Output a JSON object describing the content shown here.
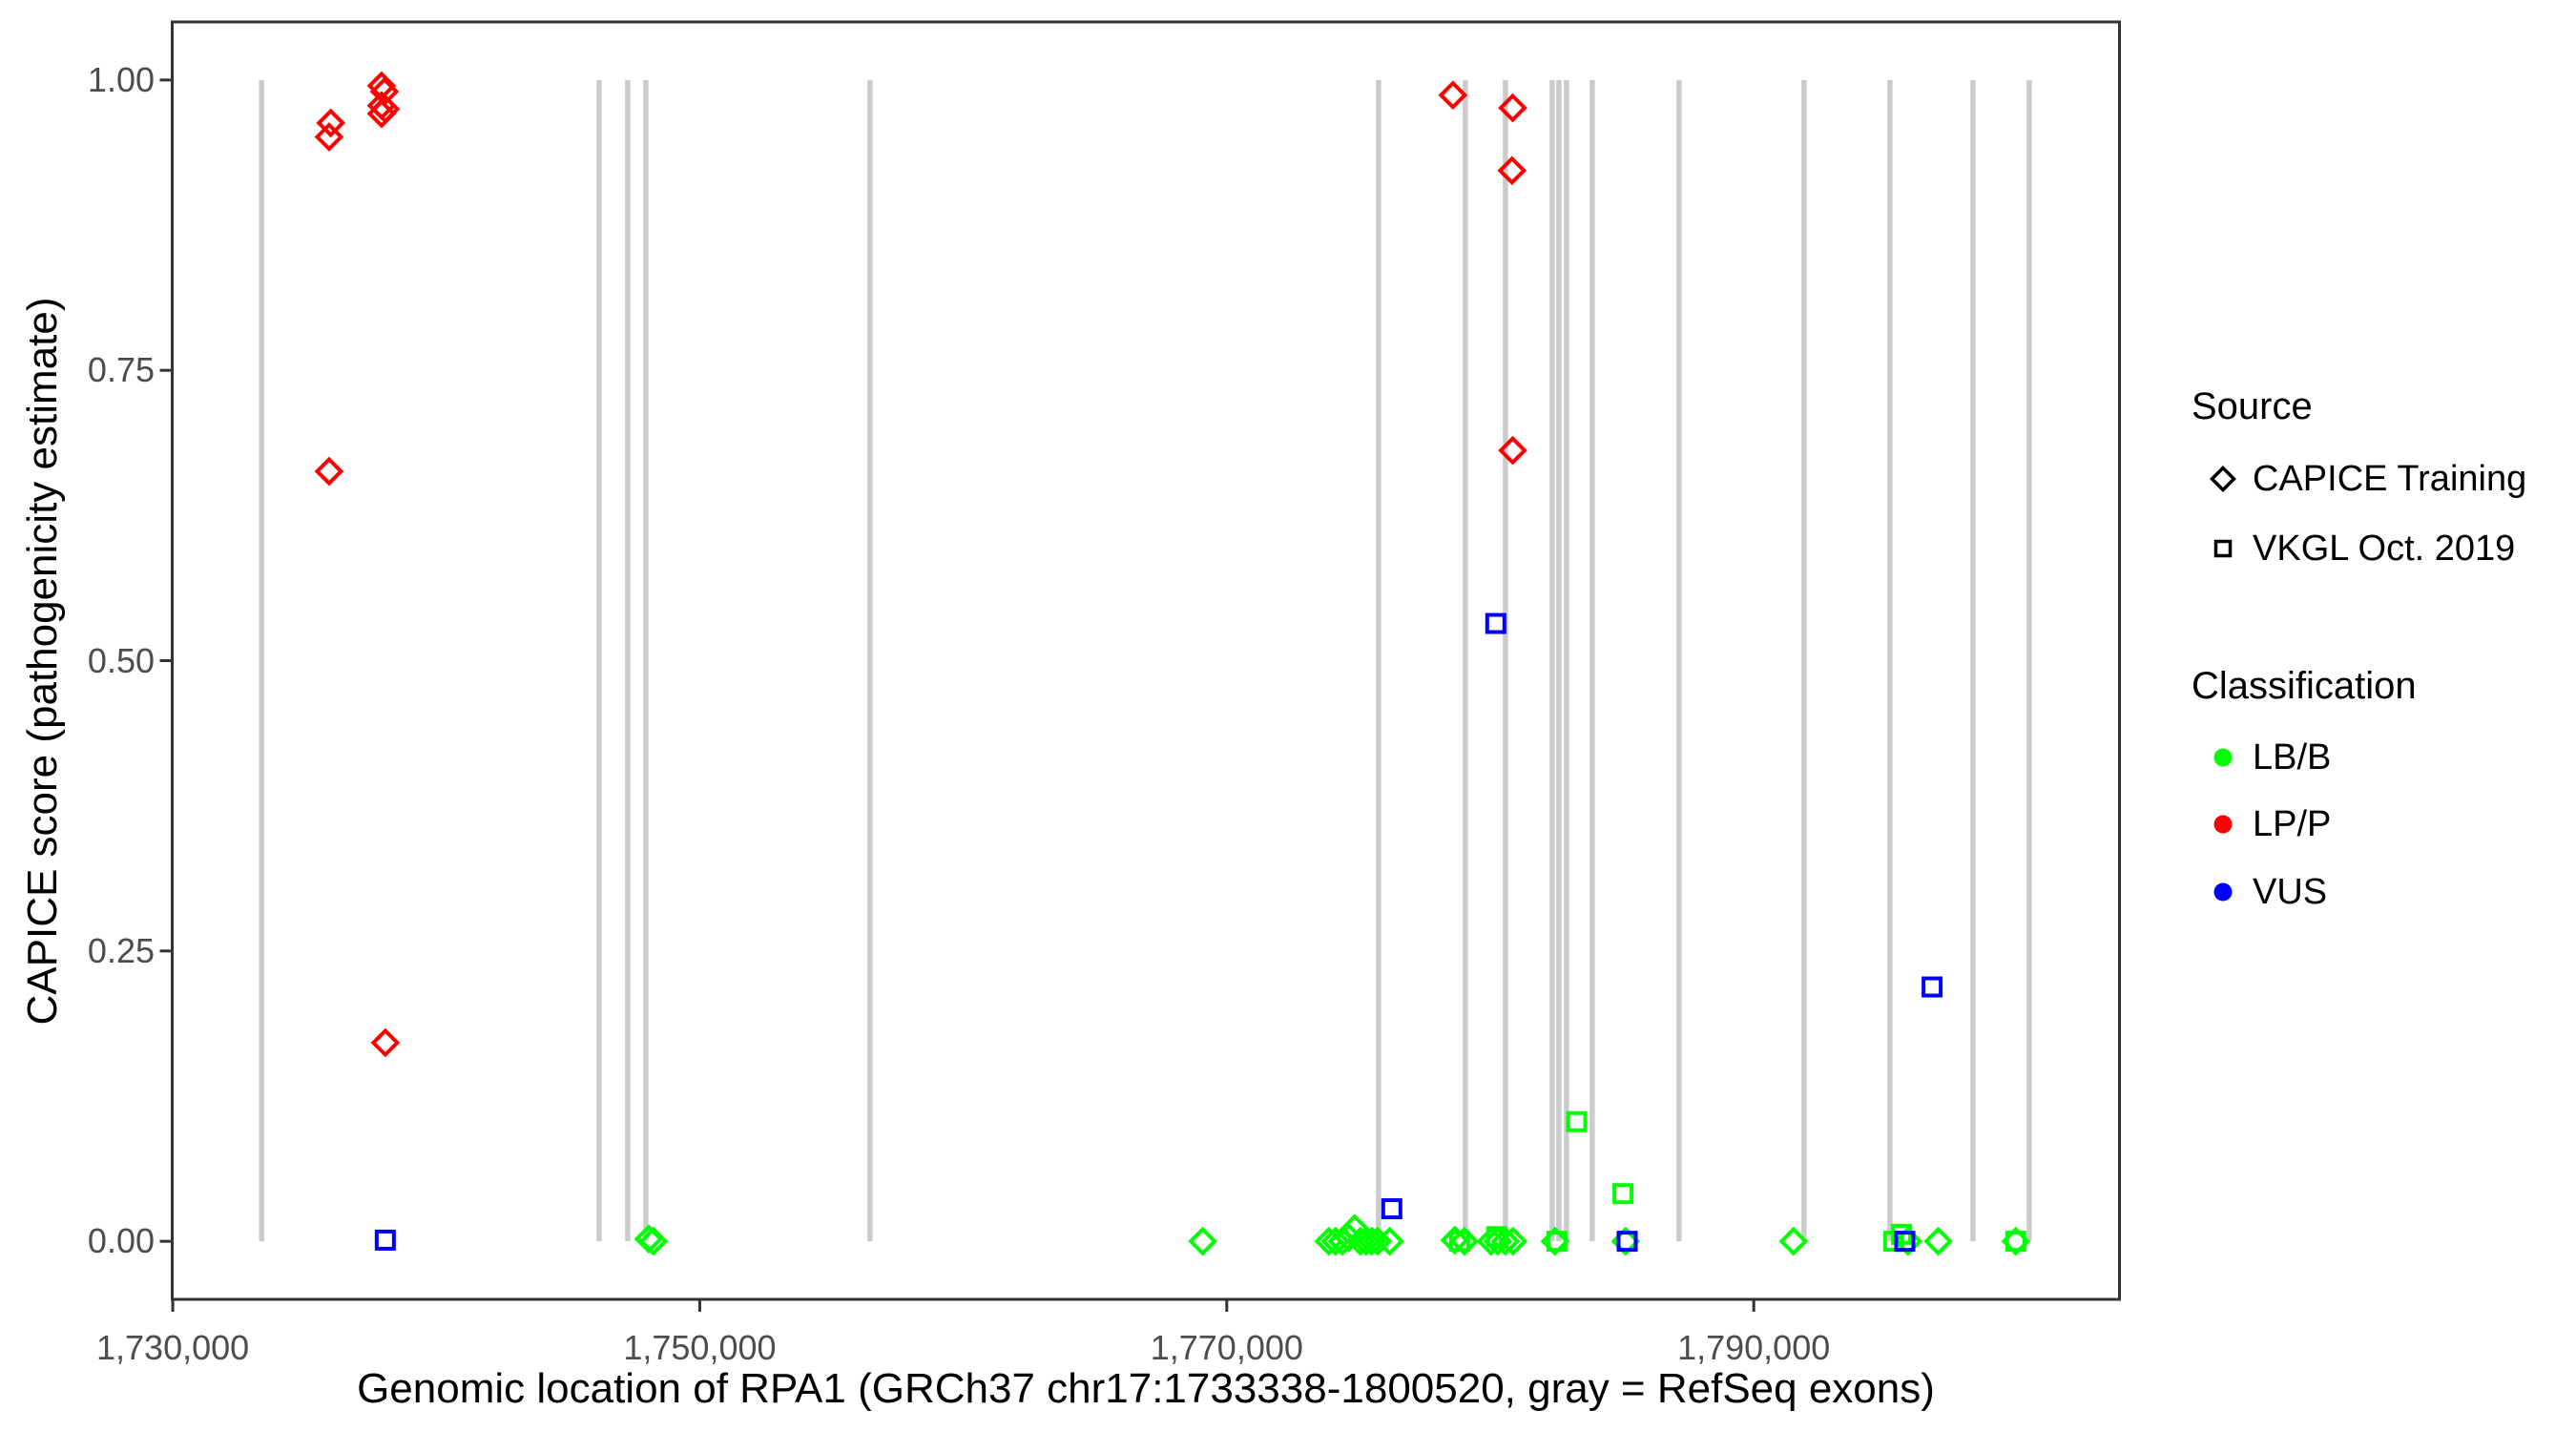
{
  "chart_data": {
    "type": "scatter",
    "title": "",
    "xlabel": "Genomic location of RPA1 (GRCh37 chr17:1733338-1800520, gray = RefSeq exons)",
    "ylabel": "CAPICE score (pathogenicity estimate)",
    "x_domain": [
      1729979,
      1803879
    ],
    "y_domain": [
      -0.05,
      1.05
    ],
    "grid": "off",
    "x_ticks": [
      {
        "value": 1730000,
        "label": "1,730,000"
      },
      {
        "value": 1750000,
        "label": "1,750,000"
      },
      {
        "value": 1770000,
        "label": "1,770,000"
      },
      {
        "value": 1790000,
        "label": "1,790,000"
      }
    ],
    "y_ticks": [
      {
        "value": 0.0,
        "label": "0.00"
      },
      {
        "value": 0.25,
        "label": "0.25"
      },
      {
        "value": 0.5,
        "label": "0.50"
      },
      {
        "value": 0.75,
        "label": "0.75"
      },
      {
        "value": 1.0,
        "label": "1.00"
      }
    ],
    "exon_note": "gray vertical segments = RefSeq exons, drawn from score 0 to 1",
    "exon_positions": [
      1733371,
      1746180,
      1747266,
      1747954,
      1756462,
      1775760,
      1779055,
      1780576,
      1782350,
      1782603,
      1782893,
      1783870,
      1787165,
      1791908,
      1795167,
      1798317,
      1800453
    ],
    "series": [
      {
        "name": "LP/P - CAPICE Training",
        "classification": "LP/P",
        "source": "CAPICE Training",
        "marker": "diamond",
        "color": "#FF0000",
        "points": [
          [
            1735996,
            0.963
          ],
          [
            1735934,
            0.951
          ],
          [
            1737925,
            0.995
          ],
          [
            1738033,
            0.99
          ],
          [
            1737925,
            0.978
          ],
          [
            1738070,
            0.975
          ],
          [
            1737925,
            0.971
          ],
          [
            1735934,
            0.663
          ],
          [
            1738066,
            0.171
          ],
          [
            1778582,
            0.987
          ],
          [
            1780851,
            0.976
          ],
          [
            1780826,
            0.922
          ],
          [
            1780851,
            0.681
          ]
        ]
      },
      {
        "name": "LB/B - CAPICE Training",
        "classification": "LB/B",
        "source": "CAPICE Training",
        "marker": "diamond",
        "color": "#00FF00",
        "points": [
          [
            1748062,
            0.002
          ],
          [
            1748243,
            0.0
          ],
          [
            1769087,
            0.0
          ],
          [
            1773877,
            0.0
          ],
          [
            1774130,
            0.0
          ],
          [
            1774384,
            0.0
          ],
          [
            1774637,
            0.003
          ],
          [
            1774854,
            0.011
          ],
          [
            1775072,
            0.0
          ],
          [
            1775289,
            0.0
          ],
          [
            1775506,
            0.0
          ],
          [
            1775723,
            0.0
          ],
          [
            1776183,
            0.0
          ],
          [
            1778655,
            0.001
          ],
          [
            1779017,
            0.0
          ],
          [
            1780031,
            0.0
          ],
          [
            1780284,
            0.0
          ],
          [
            1780574,
            0.0
          ],
          [
            1780864,
            0.0
          ],
          [
            1782457,
            0.0
          ],
          [
            1785136,
            0.0
          ],
          [
            1791508,
            0.0
          ],
          [
            1795853,
            0.0
          ],
          [
            1797001,
            0.0
          ],
          [
            1799944,
            0.0
          ]
        ]
      },
      {
        "name": "LB/B - VKGL Oct. 2019",
        "classification": "LB/B",
        "source": "VKGL Oct. 2019",
        "marker": "square",
        "color": "#00FF00",
        "points": [
          [
            1783278,
            0.103
          ],
          [
            1785037,
            0.041
          ],
          [
            1795310,
            0.0
          ],
          [
            1795611,
            0.006
          ],
          [
            1799944,
            0.0
          ],
          [
            1782529,
            0.0
          ],
          [
            1780248,
            0.004
          ],
          [
            1778836,
            0.0
          ]
        ]
      },
      {
        "name": "VUS - VKGL Oct. 2019",
        "classification": "VUS",
        "source": "VKGL Oct. 2019",
        "marker": "square",
        "color": "#0000FF",
        "points": [
          [
            1738066,
            0.001
          ],
          [
            1780210,
            0.532
          ],
          [
            1776264,
            0.028
          ],
          [
            1796768,
            0.219
          ],
          [
            1785196,
            0.0
          ],
          [
            1795731,
            0.0
          ]
        ]
      }
    ],
    "legend_position": "right"
  },
  "colors": {
    "lbb": "#00FF00",
    "lpp": "#FF0000",
    "vus": "#0000FF",
    "exon": "#CBCBCB",
    "axis_text": "#4D4D4D",
    "panel_border": "#333333"
  },
  "legend": {
    "source": {
      "title": "Source",
      "items": [
        {
          "label": "CAPICE Training",
          "marker": "diamond"
        },
        {
          "label": "VKGL Oct. 2019",
          "marker": "square"
        }
      ]
    },
    "classification": {
      "title": "Classification",
      "items": [
        {
          "label": "LB/B",
          "color": "#00FF00"
        },
        {
          "label": "LP/P",
          "color": "#FF0000"
        },
        {
          "label": "VUS",
          "color": "#0000FF"
        }
      ]
    }
  }
}
